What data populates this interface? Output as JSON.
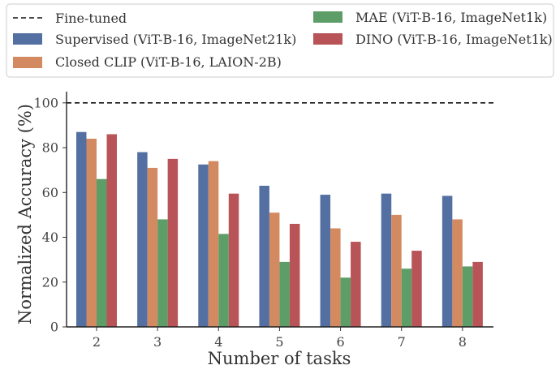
{
  "chart_data": {
    "type": "bar",
    "xlabel": "Number of tasks",
    "ylabel": "Normalized Accuracy (%)",
    "categories": [
      "2",
      "3",
      "4",
      "5",
      "6",
      "7",
      "8"
    ],
    "ylim": [
      0,
      105
    ],
    "yticks": [
      0,
      20,
      40,
      60,
      80,
      100
    ],
    "grid": false,
    "legend_position": "top",
    "reference_line": {
      "name": "Fine-tuned",
      "value": 100,
      "style": "dashed",
      "color": "#111111"
    },
    "series": [
      {
        "name": "Supervised (ViT-B-16, ImageNet21k)",
        "color": "#5470a2",
        "values": [
          87,
          78,
          72.5,
          63,
          59,
          59.5,
          58.5
        ]
      },
      {
        "name": "Closed CLIP (ViT-B-16, LAION-2B)",
        "color": "#d48a61",
        "values": [
          84,
          71,
          74,
          51,
          44,
          50,
          48
        ]
      },
      {
        "name": "MAE (ViT-B-16, ImageNet1k)",
        "color": "#5d9e68",
        "values": [
          66,
          48,
          41.5,
          29,
          22,
          26,
          27
        ]
      },
      {
        "name": "DINO (ViT-B-16, ImageNet1k)",
        "color": "#b85457",
        "values": [
          86,
          75,
          59.5,
          46,
          38,
          34,
          29
        ]
      }
    ]
  }
}
